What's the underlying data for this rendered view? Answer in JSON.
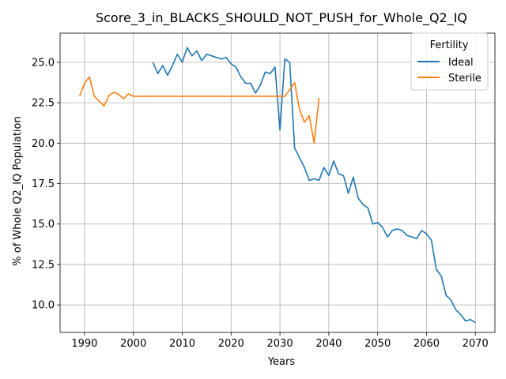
{
  "chart_data": {
    "type": "line",
    "title": "Score_3_in_BLACKS_SHOULD_NOT_PUSH_for_Whole_Q2_IQ",
    "xlabel": "Years",
    "ylabel": "% of Whole Q2_IQ Population",
    "xlim": [
      1985,
      2074
    ],
    "ylim": [
      8.3,
      26.8
    ],
    "xticks": [
      1990,
      2000,
      2010,
      2020,
      2030,
      2040,
      2050,
      2060,
      2070
    ],
    "yticks": [
      10.0,
      12.5,
      15.0,
      17.5,
      20.0,
      22.5,
      25.0
    ],
    "grid": true,
    "legend": {
      "title": "Fertility",
      "placement": "top-right"
    },
    "series": [
      {
        "name": "Ideal",
        "color": "#1f77b4",
        "x": [
          2004,
          2005,
          2006,
          2007,
          2008,
          2009,
          2010,
          2011,
          2012,
          2013,
          2014,
          2015,
          2016,
          2017,
          2018,
          2019,
          2020,
          2021,
          2022,
          2023,
          2024,
          2025,
          2026,
          2027,
          2028,
          2029,
          2030,
          2031,
          2032,
          2033,
          2034,
          2035,
          2036,
          2037,
          2038,
          2039,
          2040,
          2041,
          2042,
          2043,
          2044,
          2045,
          2046,
          2047,
          2048,
          2049,
          2050,
          2051,
          2052,
          2053,
          2054,
          2055,
          2056,
          2057,
          2058,
          2059,
          2060,
          2061,
          2062,
          2063,
          2064,
          2065,
          2066,
          2067,
          2068,
          2069,
          2070
        ],
        "values": [
          25.0,
          24.3,
          24.8,
          24.2,
          24.8,
          25.5,
          25.0,
          25.9,
          25.4,
          25.7,
          25.1,
          25.5,
          25.4,
          25.3,
          25.2,
          25.3,
          24.9,
          24.7,
          24.1,
          23.7,
          23.7,
          23.1,
          23.6,
          24.4,
          24.3,
          24.7,
          20.8,
          25.2,
          25.0,
          19.7,
          19.1,
          18.5,
          17.7,
          17.8,
          17.7,
          18.5,
          18.0,
          18.9,
          18.1,
          18.0,
          16.9,
          17.9,
          16.6,
          16.2,
          16.0,
          15.0,
          15.1,
          14.8,
          14.2,
          14.6,
          14.7,
          14.6,
          14.3,
          14.2,
          14.1,
          14.6,
          14.4,
          14.0,
          12.2,
          11.8,
          10.6,
          10.3,
          9.7,
          9.4,
          9.0,
          9.1,
          8.9
        ]
      },
      {
        "name": "Sterile",
        "color": "#ff7f0e",
        "x": [
          1989,
          1990,
          1991,
          1992,
          1993,
          1994,
          1995,
          1996,
          1997,
          1998,
          1999,
          2000,
          2001,
          2002,
          2003,
          2004,
          2005,
          2006,
          2007,
          2008,
          2009,
          2010,
          2011,
          2012,
          2013,
          2014,
          2015,
          2016,
          2017,
          2018,
          2019,
          2020,
          2021,
          2022,
          2023,
          2024,
          2025,
          2026,
          2027,
          2028,
          2029,
          2030,
          2031,
          2032,
          2033,
          2034,
          2035,
          2036,
          2037,
          2038
        ],
        "values": [
          22.9,
          23.7,
          24.1,
          22.9,
          22.6,
          22.3,
          22.95,
          23.15,
          23.0,
          22.75,
          23.05,
          22.9,
          22.9,
          22.9,
          22.9,
          22.9,
          22.9,
          22.9,
          22.9,
          22.9,
          22.9,
          22.9,
          22.9,
          22.9,
          22.9,
          22.9,
          22.9,
          22.9,
          22.9,
          22.9,
          22.9,
          22.9,
          22.9,
          22.9,
          22.9,
          22.9,
          22.9,
          22.9,
          22.9,
          22.9,
          22.9,
          22.9,
          22.9,
          23.3,
          23.75,
          22.1,
          21.3,
          21.7,
          20.0,
          22.8
        ]
      }
    ]
  }
}
